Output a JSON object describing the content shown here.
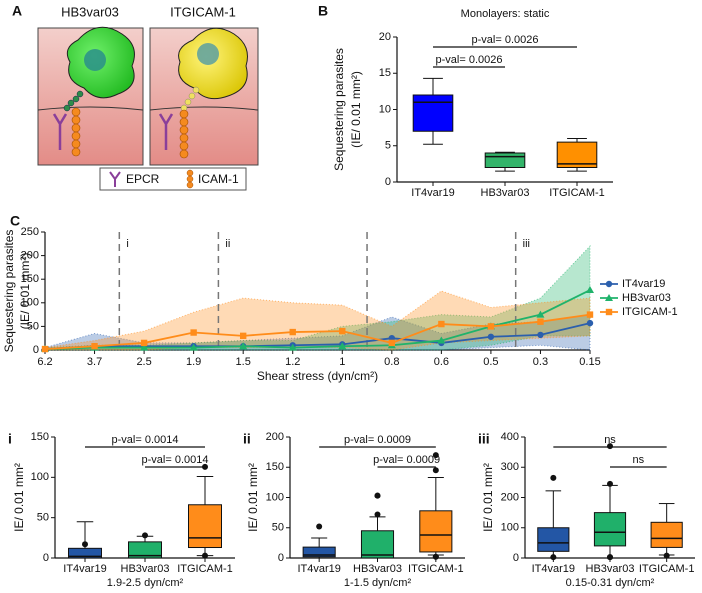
{
  "diagram": {
    "panel": "A",
    "cells": [
      "HB3var03",
      "ITGICAM-1"
    ],
    "legend": [
      "EPCR",
      "ICAM-1"
    ]
  },
  "chart_data": [
    {
      "type": "box",
      "panel": "B",
      "title": "Monolayers: static",
      "ylabel": [
        "Sequestering parasites",
        "(IE/ 0.01 mm²)"
      ],
      "categories": [
        "IT4var19",
        "HB3var03",
        "ITGICAM-1"
      ],
      "colors": [
        "#0000ff",
        "#33b46a",
        "#ff9000"
      ],
      "boxes": [
        {
          "whislo": 5.2,
          "q1": 7,
          "med": 11,
          "q3": 12,
          "whishi": 14.3,
          "fliers": []
        },
        {
          "whislo": 1.5,
          "q1": 2,
          "med": 3.5,
          "q3": 4,
          "whishi": 4.1,
          "fliers": []
        },
        {
          "whislo": 1.5,
          "q1": 2,
          "med": 2.5,
          "q3": 5.5,
          "whishi": 6,
          "fliers": []
        }
      ],
      "ylim": [
        0,
        20
      ],
      "yticks": [
        0,
        5,
        10,
        15,
        20
      ],
      "annotations": [
        {
          "text": "p-val= 0.0026",
          "between": [
            "IT4var19",
            "ITGICAM-1"
          ]
        },
        {
          "text": "p-val= 0.0026",
          "between": [
            "IT4var19",
            "HB3var03"
          ]
        }
      ]
    },
    {
      "type": "line",
      "panel": "C",
      "ylabel": [
        "Sequestering parasites",
        "(IE/ 0.01 mm²)"
      ],
      "xlabel": "Shear stress (dyn/cm²)",
      "categories": [
        "6.2",
        "3.7",
        "2.5",
        "1.9",
        "1.5",
        "1.2",
        "1",
        "0.8",
        "0.6",
        "0.5",
        "0.3",
        "0.15"
      ],
      "ylim": [
        0,
        250
      ],
      "yticks": [
        0,
        50,
        100,
        150,
        200,
        250
      ],
      "dividers": [
        {
          "after": "3.7",
          "label": "i"
        },
        {
          "after": "1.9",
          "label": "ii"
        },
        {
          "after": "1"
        },
        {
          "after": "0.5",
          "label": "iii"
        }
      ],
      "legend": "right",
      "series": [
        {
          "name": "IT4var19",
          "color": "#2b5fad",
          "marker": "circle",
          "values": [
            2,
            8,
            8,
            8,
            8,
            10,
            12,
            25,
            15,
            28,
            32,
            57
          ],
          "upper": [
            5,
            35,
            15,
            15,
            20,
            25,
            30,
            70,
            35,
            55,
            60,
            75
          ],
          "lower": [
            0,
            0,
            0,
            0,
            0,
            0,
            0,
            0,
            0,
            5,
            10,
            0
          ]
        },
        {
          "name": "HB3var03",
          "color": "#1fb36b",
          "marker": "triangle",
          "values": [
            2,
            5,
            5,
            5,
            8,
            5,
            8,
            10,
            20,
            50,
            75,
            127
          ],
          "upper": [
            5,
            10,
            10,
            15,
            20,
            20,
            50,
            60,
            75,
            70,
            110,
            220
          ],
          "lower": [
            0,
            0,
            0,
            0,
            0,
            0,
            0,
            0,
            0,
            10,
            30,
            30
          ]
        },
        {
          "name": "ITGICAM-1",
          "color": "#ff8c1a",
          "marker": "square",
          "values": [
            2,
            8,
            15,
            37,
            30,
            38,
            40,
            15,
            55,
            50,
            60,
            75
          ],
          "upper": [
            5,
            20,
            40,
            80,
            110,
            100,
            95,
            50,
            125,
            90,
            100,
            110
          ],
          "lower": [
            0,
            0,
            0,
            5,
            5,
            5,
            5,
            0,
            15,
            20,
            25,
            30
          ]
        }
      ]
    },
    {
      "type": "box",
      "panel": "i",
      "ylabel": "IE/ 0.01 mm²",
      "xlabel": "1.9-2.5 dyn/cm²",
      "categories": [
        "IT4var19",
        "HB3var03",
        "ITGICAM-1"
      ],
      "colors": [
        "#2356a5",
        "#20b06a",
        "#ff8c1a"
      ],
      "boxes": [
        {
          "whislo": 0,
          "q1": 0,
          "med": 2,
          "q3": 12,
          "whishi": 45,
          "fliers": [
            17
          ]
        },
        {
          "whislo": 0,
          "q1": 0,
          "med": 3,
          "q3": 20,
          "whishi": 27,
          "fliers": [
            28
          ]
        },
        {
          "whislo": 3,
          "q1": 13,
          "med": 25,
          "q3": 66,
          "whishi": 101,
          "fliers": [
            3,
            113
          ]
        }
      ],
      "ylim": [
        0,
        150
      ],
      "yticks": [
        0,
        50,
        100,
        150
      ],
      "annotations": [
        {
          "text": "p-val= 0.0014",
          "between": [
            "IT4var19",
            "ITGICAM-1"
          ]
        },
        {
          "text": "p-val= 0.0014",
          "between": [
            "HB3var03",
            "ITGICAM-1"
          ]
        }
      ]
    },
    {
      "type": "box",
      "panel": "ii",
      "ylabel": "IE/ 0.01 mm²",
      "xlabel": "1-1.5 dyn/cm²",
      "categories": [
        "IT4var19",
        "HB3var03",
        "ITGICAM-1"
      ],
      "colors": [
        "#2356a5",
        "#20b06a",
        "#ff8c1a"
      ],
      "boxes": [
        {
          "whislo": 0,
          "q1": 2,
          "med": 5,
          "q3": 18,
          "whishi": 33,
          "fliers": [
            52
          ]
        },
        {
          "whislo": 0,
          "q1": 0,
          "med": 5,
          "q3": 45,
          "whishi": 68,
          "fliers": [
            72,
            103,
            103
          ]
        },
        {
          "whislo": 5,
          "q1": 10,
          "med": 38,
          "q3": 78,
          "whishi": 133,
          "fliers": [
            2,
            2,
            145,
            170
          ]
        }
      ],
      "ylim": [
        0,
        200
      ],
      "yticks": [
        0,
        50,
        100,
        150,
        200
      ],
      "annotations": [
        {
          "text": "p-val= 0.0009",
          "between": [
            "IT4var19",
            "ITGICAM-1"
          ]
        },
        {
          "text": "p-val= 0.0009",
          "between": [
            "HB3var03",
            "ITGICAM-1"
          ]
        }
      ]
    },
    {
      "type": "box",
      "panel": "iii",
      "ylabel": "IE/ 0.01 mm²",
      "xlabel": "0.15-0.31 dyn/cm²",
      "categories": [
        "IT4var19",
        "HB3var03",
        "ITGICAM-1"
      ],
      "colors": [
        "#2356a5",
        "#20b06a",
        "#ff8c1a"
      ],
      "boxes": [
        {
          "whislo": 0,
          "q1": 22,
          "med": 50,
          "q3": 100,
          "whishi": 222,
          "fliers": [
            265,
            3
          ]
        },
        {
          "whislo": 0,
          "q1": 40,
          "med": 85,
          "q3": 150,
          "whishi": 240,
          "fliers": [
            370,
            245,
            3,
            3
          ]
        },
        {
          "whislo": 10,
          "q1": 35,
          "med": 65,
          "q3": 118,
          "whishi": 180,
          "fliers": [
            8
          ]
        }
      ],
      "ylim": [
        0,
        400
      ],
      "yticks": [
        0,
        100,
        200,
        300,
        400
      ],
      "annotations": [
        {
          "text": "ns",
          "between": [
            "IT4var19",
            "ITGICAM-1"
          ]
        },
        {
          "text": "ns",
          "between": [
            "HB3var03",
            "ITGICAM-1"
          ]
        }
      ]
    }
  ]
}
